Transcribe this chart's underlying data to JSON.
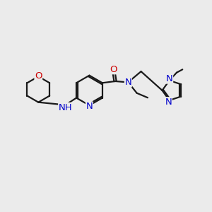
{
  "bg_color": "#ebebeb",
  "bond_color": "#1a1a1a",
  "N_color": "#0000cc",
  "O_color": "#cc0000",
  "line_width": 1.6,
  "font_size": 9.5,
  "fig_size": [
    3.0,
    3.0
  ],
  "dpi": 100,
  "xlim": [
    0,
    10
  ],
  "ylim": [
    0,
    10
  ]
}
